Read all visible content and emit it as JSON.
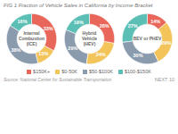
{
  "chart_data": [
    {
      "type": "donut",
      "title": "FIG 1 Fraction of Vehicle Sales in California by Income Bracket",
      "caption": "Source: National Center for Sustainable Transportation",
      "annotations": [
        "NEXT 10"
      ],
      "label": "Internal\nCombustion\n(ICE)",
      "categories": [
        "$150K+",
        "$0-50K",
        "$50-$100K",
        "$100-$150K"
      ],
      "colors": [
        "#E8665A",
        "#F2C45A",
        "#8A9BAD",
        "#5BBFB5"
      ],
      "values": [
        33,
        13,
        38,
        16
      ],
      "value_labels": [
        "33%",
        "13%",
        "38%",
        "16%"
      ],
      "data_labels": true
    },
    {
      "type": "donut",
      "label": "Hybrid\nVehicle\n(HEV)",
      "categories": [
        "$150K+",
        "$0-50K",
        "$50-$100K",
        "$100-$150K"
      ],
      "colors": [
        "#E8665A",
        "#F2C45A",
        "#8A9BAD",
        "#5BBFB5"
      ],
      "values": [
        28,
        24,
        29,
        19
      ],
      "value_labels": [
        "28%",
        "24%",
        "29%",
        "19%"
      ],
      "data_labels": true
    },
    {
      "type": "donut",
      "label": "BEV or PHEV",
      "categories": [
        "$150K+",
        "$0-50K",
        "$50-$100K",
        "$100-$150K"
      ],
      "colors": [
        "#E8665A",
        "#F2C45A",
        "#8A9BAD",
        "#5BBFB5"
      ],
      "values": [
        14,
        29,
        30,
        27
      ],
      "value_labels": [
        "14%",
        "29%",
        "30%",
        "27%"
      ],
      "data_labels": true
    }
  ]
}
